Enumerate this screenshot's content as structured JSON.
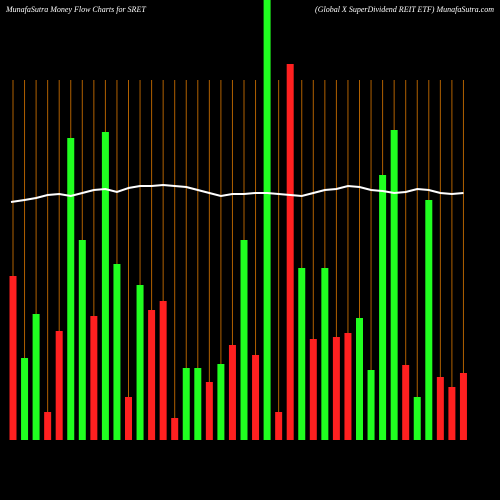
{
  "chart_data": {
    "type": "bar",
    "title": "MunafaSutra  Money Flow  Charts for SRET",
    "subtitle": "(Global X  SuperDividend REIT ETF) MunafaSutra.com",
    "categories": [
      null,
      null,
      null,
      null,
      null,
      null,
      null,
      null,
      null,
      null,
      null,
      null,
      null,
      null,
      null,
      null,
      null,
      null,
      null,
      null,
      null,
      null,
      null,
      null,
      null,
      null,
      null,
      null,
      null,
      null,
      null,
      null,
      null,
      null,
      null,
      null,
      null,
      null,
      null,
      null
    ],
    "values": [
      164,
      82,
      126,
      28,
      109,
      302,
      200,
      124,
      308,
      176,
      43,
      155,
      130,
      139,
      22,
      72,
      72,
      58,
      76,
      95,
      200,
      85,
      440,
      28,
      376,
      172,
      101,
      172,
      103,
      107,
      122,
      70,
      265,
      310,
      75,
      43,
      240,
      63,
      53,
      67
    ],
    "colors": [
      "#ff2020",
      "#20ff20",
      "#20ff20",
      "#ff2020",
      "#ff2020",
      "#20ff20",
      "#20ff20",
      "#ff2020",
      "#20ff20",
      "#20ff20",
      "#ff2020",
      "#20ff20",
      "#ff2020",
      "#ff2020",
      "#ff2020",
      "#20ff20",
      "#20ff20",
      "#ff2020",
      "#20ff20",
      "#ff2020",
      "#20ff20",
      "#ff2020",
      "#20ff20",
      "#ff2020",
      "#ff2020",
      "#20ff20",
      "#ff2020",
      "#20ff20",
      "#ff2020",
      "#ff2020",
      "#20ff20",
      "#20ff20",
      "#20ff20",
      "#20ff20",
      "#ff2020",
      "#20ff20",
      "#20ff20",
      "#ff2020",
      "#ff2020",
      "#ff2020"
    ],
    "line": {
      "color": "#ffffff",
      "values": [
        238,
        240,
        242,
        245,
        246,
        244,
        247,
        250,
        251,
        248,
        252,
        254,
        254,
        255,
        254,
        253,
        250,
        247,
        244,
        246,
        246,
        247,
        247,
        246,
        245,
        244,
        247,
        250,
        251,
        254,
        253,
        250,
        249,
        247,
        248,
        251,
        250,
        247,
        246,
        247
      ]
    },
    "ylim": [
      0,
      440
    ]
  }
}
